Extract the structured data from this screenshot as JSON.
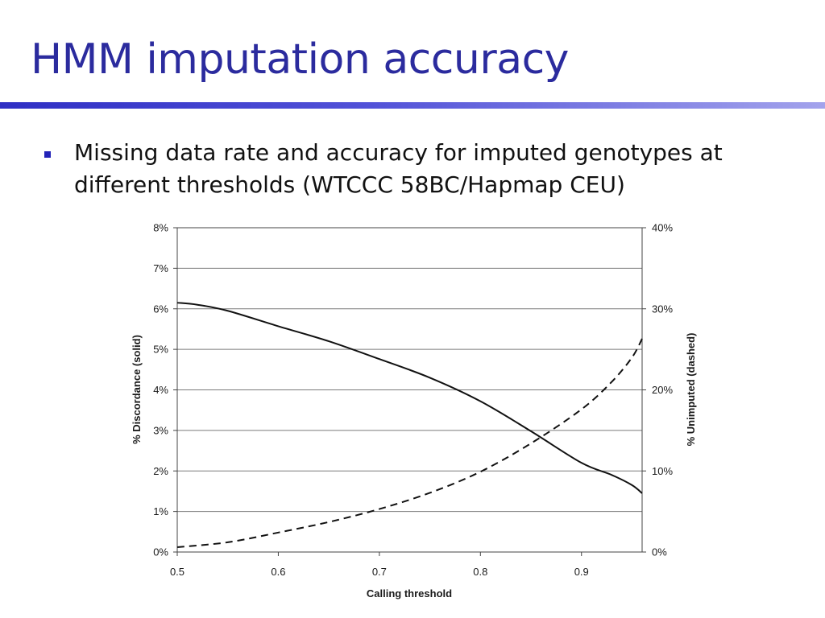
{
  "slide": {
    "title": "HMM imputation accuracy",
    "bullet": "Missing data rate and accuracy for imputed genotypes at different thresholds (WTCCC 58BC/Hapmap CEU)",
    "colors": {
      "title": "#2b2b9e",
      "rule": "#3a3ad0",
      "bullet": "#2323b8"
    }
  },
  "chart_data": {
    "type": "line",
    "title": "",
    "xlabel": "Calling threshold",
    "ylabel_left": "% Discordance (solid)",
    "ylabel_right": "% Unimputed (dashed)",
    "xlim": [
      0.5,
      0.96
    ],
    "ylim_left": [
      0,
      8
    ],
    "ylim_right": [
      0,
      40
    ],
    "x_ticks": [
      "0.5",
      "0.6",
      "0.7",
      "0.8",
      "0.9"
    ],
    "y_left_ticks": [
      "0%",
      "1%",
      "2%",
      "3%",
      "4%",
      "5%",
      "6%",
      "7%",
      "8%"
    ],
    "y_right_ticks": [
      "0%",
      "10%",
      "20%",
      "30%",
      "40%"
    ],
    "grid": true,
    "series": [
      {
        "name": "% Discordance",
        "axis": "left",
        "style": "solid",
        "x": [
          0.5,
          0.52,
          0.55,
          0.6,
          0.65,
          0.7,
          0.75,
          0.8,
          0.85,
          0.9,
          0.93,
          0.95,
          0.96
        ],
        "y": [
          6.15,
          6.1,
          5.95,
          5.57,
          5.2,
          4.76,
          4.3,
          3.72,
          2.98,
          2.2,
          1.9,
          1.65,
          1.45
        ]
      },
      {
        "name": "% Unimputed",
        "axis": "right",
        "style": "dashed",
        "x": [
          0.5,
          0.55,
          0.6,
          0.65,
          0.7,
          0.75,
          0.8,
          0.85,
          0.9,
          0.93,
          0.95,
          0.96
        ],
        "y": [
          0.6,
          1.2,
          2.4,
          3.7,
          5.3,
          7.3,
          9.9,
          13.4,
          17.6,
          21.0,
          24.0,
          26.3
        ]
      }
    ]
  }
}
